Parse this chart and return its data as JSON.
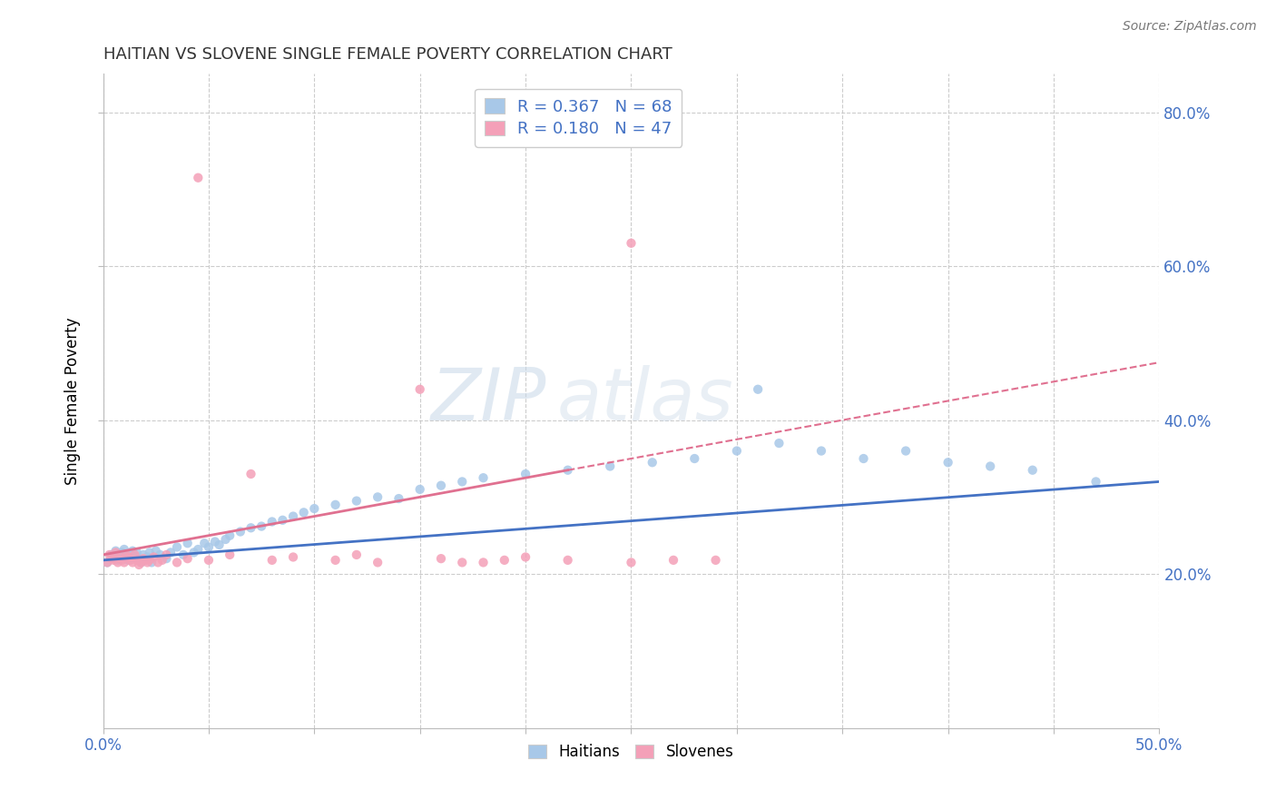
{
  "title": "HAITIAN VS SLOVENE SINGLE FEMALE POVERTY CORRELATION CHART",
  "source": "Source: ZipAtlas.com",
  "ylabel": "Single Female Poverty",
  "xlim": [
    0.0,
    0.5
  ],
  "ylim": [
    0.0,
    0.85
  ],
  "ytick_labels_right": [
    "20.0%",
    "40.0%",
    "60.0%",
    "80.0%"
  ],
  "ytick_positions_right": [
    0.2,
    0.4,
    0.6,
    0.8
  ],
  "haitian_color": "#a8c8e8",
  "slovene_color": "#f4a0b8",
  "haitian_line_color": "#4472c4",
  "slovene_line_color": "#e07090",
  "legend_haitian_r": "R = 0.367",
  "legend_haitian_n": "N = 68",
  "legend_slovene_r": "R = 0.180",
  "legend_slovene_n": "N = 47",
  "watermark_zip": "ZIP",
  "watermark_atlas": "atlas",
  "haitian_x": [
    0.002,
    0.004,
    0.005,
    0.006,
    0.007,
    0.008,
    0.009,
    0.01,
    0.01,
    0.011,
    0.012,
    0.013,
    0.014,
    0.015,
    0.016,
    0.017,
    0.018,
    0.019,
    0.02,
    0.021,
    0.022,
    0.023,
    0.025,
    0.027,
    0.03,
    0.032,
    0.035,
    0.038,
    0.04,
    0.043,
    0.045,
    0.048,
    0.05,
    0.053,
    0.055,
    0.058,
    0.06,
    0.065,
    0.07,
    0.075,
    0.08,
    0.085,
    0.09,
    0.095,
    0.1,
    0.11,
    0.12,
    0.13,
    0.14,
    0.15,
    0.16,
    0.17,
    0.18,
    0.2,
    0.22,
    0.24,
    0.26,
    0.28,
    0.3,
    0.31,
    0.32,
    0.34,
    0.36,
    0.38,
    0.4,
    0.42,
    0.44,
    0.47
  ],
  "haitian_y": [
    0.215,
    0.225,
    0.22,
    0.23,
    0.218,
    0.222,
    0.228,
    0.225,
    0.232,
    0.22,
    0.218,
    0.225,
    0.23,
    0.222,
    0.228,
    0.22,
    0.215,
    0.225,
    0.218,
    0.222,
    0.228,
    0.215,
    0.23,
    0.225,
    0.22,
    0.228,
    0.235,
    0.225,
    0.24,
    0.228,
    0.232,
    0.24,
    0.235,
    0.242,
    0.238,
    0.245,
    0.25,
    0.255,
    0.26,
    0.262,
    0.268,
    0.27,
    0.275,
    0.28,
    0.285,
    0.29,
    0.295,
    0.3,
    0.298,
    0.31,
    0.315,
    0.32,
    0.325,
    0.33,
    0.335,
    0.34,
    0.345,
    0.35,
    0.36,
    0.44,
    0.37,
    0.36,
    0.35,
    0.36,
    0.345,
    0.34,
    0.335,
    0.32
  ],
  "slovene_x": [
    0.002,
    0.003,
    0.004,
    0.005,
    0.006,
    0.007,
    0.008,
    0.009,
    0.01,
    0.011,
    0.012,
    0.013,
    0.014,
    0.015,
    0.016,
    0.017,
    0.018,
    0.019,
    0.02,
    0.021,
    0.022,
    0.024,
    0.026,
    0.028,
    0.03,
    0.035,
    0.04,
    0.045,
    0.05,
    0.06,
    0.07,
    0.08,
    0.09,
    0.11,
    0.12,
    0.13,
    0.15,
    0.16,
    0.18,
    0.19,
    0.2,
    0.22,
    0.25,
    0.27,
    0.29,
    0.25,
    0.17
  ],
  "slovene_y": [
    0.215,
    0.225,
    0.22,
    0.218,
    0.228,
    0.215,
    0.222,
    0.218,
    0.215,
    0.225,
    0.222,
    0.218,
    0.215,
    0.225,
    0.218,
    0.212,
    0.215,
    0.22,
    0.218,
    0.215,
    0.218,
    0.222,
    0.215,
    0.218,
    0.225,
    0.215,
    0.22,
    0.715,
    0.218,
    0.225,
    0.33,
    0.218,
    0.222,
    0.218,
    0.225,
    0.215,
    0.44,
    0.22,
    0.215,
    0.218,
    0.222,
    0.218,
    0.215,
    0.218,
    0.218,
    0.63,
    0.215
  ]
}
